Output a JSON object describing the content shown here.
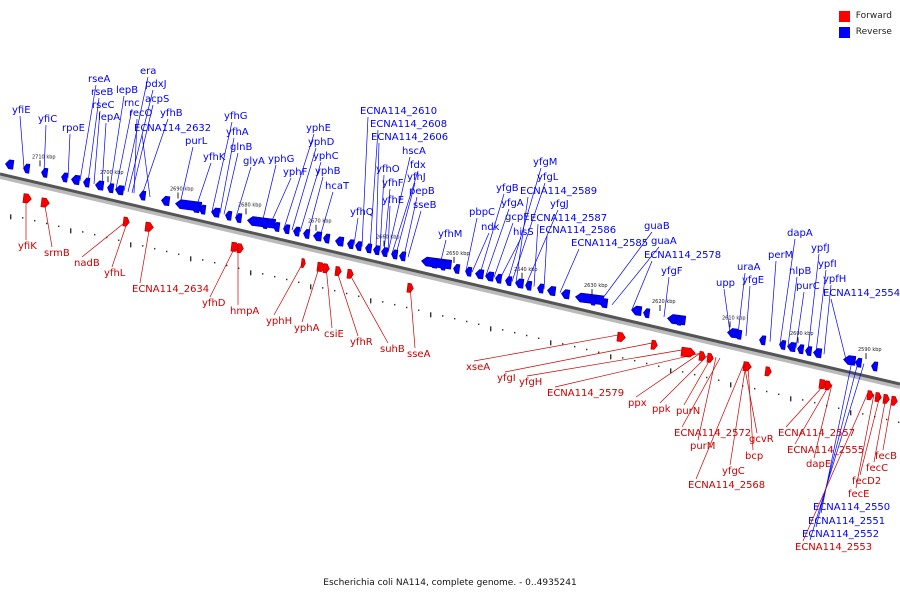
{
  "caption": "Escherichia coli NA114, complete genome. - 0..4935241",
  "legend": [
    {
      "label": "Forward",
      "color": "#ff0000"
    },
    {
      "label": "Reverse",
      "color": "#0000ff"
    }
  ],
  "kbp_ticks": [
    "2710 kbp",
    "2700 kbp",
    "2690 kbp",
    "2680 kbp",
    "2670 kbp",
    "2660 kbp",
    "2650 kbp",
    "2640 kbp",
    "2630 kbp",
    "2620 kbp",
    "2610 kbp",
    "2600 kbp",
    "2590 kbp"
  ],
  "reverse_labels": [
    "yfiE",
    "yfiC",
    "rpoE",
    "rseA",
    "rseB",
    "rseC",
    "lepA",
    "lepB",
    "rnc",
    "era",
    "pdxJ",
    "acpS",
    "recO",
    "yfhB",
    "ECNA114_2632",
    "purL",
    "yfhK",
    "yfhG",
    "yfhA",
    "glnB",
    "glyA",
    "yphG",
    "yphF",
    "yphE",
    "yphD",
    "yphC",
    "yphB",
    "hcaT",
    "yfhQ",
    "ECNA114_2610",
    "ECNA114_2608",
    "ECNA114_2606",
    "yfhO",
    "hscA",
    "fdx",
    "yfhF",
    "yfhJ",
    "yfhE",
    "pepB",
    "sseB",
    "yfhM",
    "pbpC",
    "ndk",
    "yfgB",
    "yfgA",
    "gcpE",
    "hisS",
    "yfgM",
    "yfgL",
    "ECNA114_2589",
    "yfgJ",
    "ECNA114_2587",
    "ECNA114_2586",
    "ECNA114_2585",
    "guaB",
    "guaA",
    "ECNA114_2578",
    "yfgF",
    "upp",
    "uraA",
    "yfgE",
    "perM",
    "dapA",
    "nlpB",
    "purC",
    "ypfJ",
    "ypfI",
    "ypfH",
    "ECNA114_2554",
    "ECNA114_2550",
    "ECNA114_2551",
    "ECNA114_2552"
  ],
  "forward_labels": [
    "yfiK",
    "srmB",
    "nadB",
    "yfhL",
    "ECNA114_2634",
    "yfhD",
    "hmpA",
    "yphH",
    "yphA",
    "csiE",
    "yfhR",
    "suhB",
    "sseA",
    "xseA",
    "yfgI",
    "yfgH",
    "ECNA114_2579",
    "ppx",
    "ppk",
    "purN",
    "ECNA114_2572",
    "purM",
    "gcvR",
    "bcp",
    "yfgC",
    "ECNA114_2568",
    "ECNA114_2557",
    "ECNA114_2555",
    "dapE",
    "fecB",
    "fecC",
    "fecD2",
    "fecE",
    "ECNA114_2553"
  ]
}
